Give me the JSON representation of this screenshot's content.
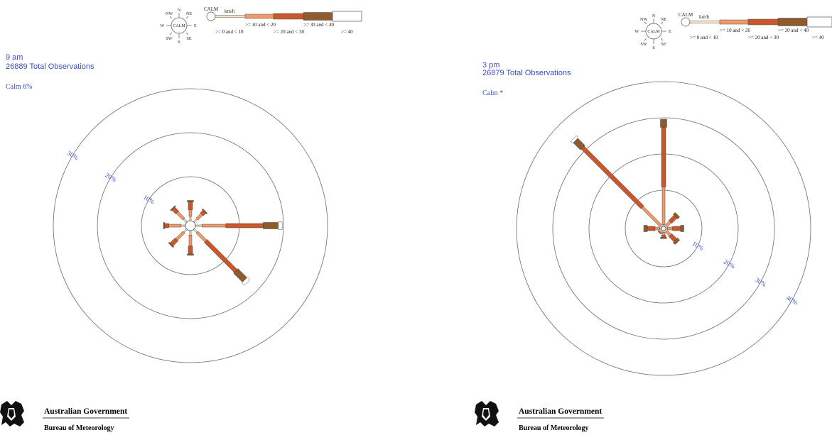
{
  "chart_data": [
    {
      "type": "windrose",
      "title": "9 am",
      "subtitle": "26889 Total Observations",
      "calm_label": "Calm 6%",
      "rings": [
        10,
        20,
        30
      ],
      "ring_labels": [
        "10%",
        "20%",
        "30%"
      ],
      "directions": [
        "N",
        "NE",
        "E",
        "SE",
        "S",
        "SW",
        "W",
        "NW"
      ],
      "speed_classes": [
        ">= 0 and < 10",
        ">= 10 and < 20",
        ">= 20 and < 30",
        ">= 30 and < 40",
        ">= 40"
      ],
      "series": [
        {
          "direction": "N",
          "values": [
            1.0,
            1.5,
            1.8,
            0.3,
            0.0
          ]
        },
        {
          "direction": "NE",
          "values": [
            1.0,
            1.5,
            0.8,
            0.3,
            0.0
          ]
        },
        {
          "direction": "E",
          "values": [
            1.5,
            5.4,
            8.5,
            3.4,
            0.9
          ]
        },
        {
          "direction": "SE",
          "values": [
            1.0,
            2.8,
            9.6,
            2.9,
            0.8
          ]
        },
        {
          "direction": "S",
          "values": [
            1.0,
            2.5,
            1.8,
            0.3,
            0.0
          ]
        },
        {
          "direction": "SW",
          "values": [
            1.0,
            2.3,
            1.6,
            0.3,
            0.0
          ]
        },
        {
          "direction": "W",
          "values": [
            1.0,
            2.8,
            0.9,
            0.3,
            0.0
          ]
        },
        {
          "direction": "NW",
          "values": [
            1.0,
            2.1,
            1.2,
            0.3,
            0.0
          ]
        }
      ]
    },
    {
      "type": "windrose",
      "title": "3 pm",
      "subtitle": "26879 Total Observations",
      "calm_label": "Calm *",
      "rings": [
        10,
        20,
        30,
        40
      ],
      "ring_labels": [
        "10%",
        "20%",
        "30%",
        "40%"
      ],
      "directions": [
        "N",
        "NE",
        "E",
        "SE",
        "S",
        "SW",
        "W",
        "NW"
      ],
      "speed_classes": [
        ">= 0 and < 10",
        ">= 10 and < 20",
        ">= 20 and < 30",
        ">= 30 and < 40",
        ">= 40"
      ],
      "series": [
        {
          "direction": "N",
          "values": [
            0.5,
            10.4,
            16.5,
            2.2,
            0.0
          ]
        },
        {
          "direction": "NE",
          "values": [
            0.5,
            1.5,
            2.0,
            0.8,
            0.0
          ]
        },
        {
          "direction": "E",
          "values": [
            0.5,
            1.4,
            2.2,
            0.9,
            0.0
          ]
        },
        {
          "direction": "SE",
          "values": [
            0.5,
            1.5,
            2.0,
            0.8,
            0.0
          ]
        },
        {
          "direction": "S",
          "values": [
            0.5,
            0.8,
            0.6,
            0.3,
            0.0
          ]
        },
        {
          "direction": "SW",
          "values": [
            0.5,
            0.3,
            0.3,
            0.0,
            0.0
          ]
        },
        {
          "direction": "W",
          "values": [
            0.5,
            1.3,
            2.1,
            1.0,
            0.0
          ]
        },
        {
          "direction": "NW",
          "values": [
            0.5,
            7.2,
            23.3,
            2.8,
            0.8
          ]
        }
      ]
    }
  ],
  "legend": {
    "calm": "CALM",
    "unit": "km/h",
    "classes_top": [
      ">= 10 and < 20",
      ">= 30 and < 40"
    ],
    "classes_bottom": [
      ">= 0 and < 10",
      ">= 20 and < 30",
      ">= 40"
    ],
    "compass": {
      "center": "CALM",
      "N": "N",
      "NE": "NE",
      "E": "E",
      "SE": "SE",
      "S": "S",
      "SW": "SW",
      "W": "W",
      "NW": "NW"
    }
  },
  "colors": {
    "class0": "#fde0c5",
    "class1": "#ef9a68",
    "class2": "#c8582c",
    "class3": "#8f5a2e",
    "class4": "#ffffff",
    "title": "#3b4fc4",
    "rings": "#6a6a6a"
  },
  "branding": {
    "line1": "Australian Government",
    "line2": "Bureau of Meteorology"
  }
}
